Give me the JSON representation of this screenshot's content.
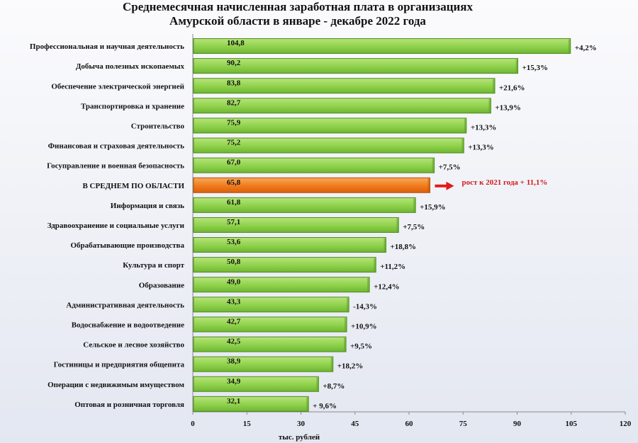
{
  "title_line1": "Среднемесячная начисленная заработная плата в организациях",
  "title_line2": "Амурской области в январе - декабре 2022 года",
  "chart_data": {
    "type": "bar",
    "orientation": "horizontal",
    "xlabel": "тыс. рублей",
    "xlim": [
      0,
      120
    ],
    "xticks": [
      0,
      15,
      30,
      45,
      60,
      75,
      90,
      105,
      120
    ],
    "categories": [
      "Профессиональная и научная деятельность",
      "Добыча полезных ископаемых",
      "Обеспечение электрической энергией",
      "Транспортировка и хранение",
      "Строительство",
      "Финансовая и страховая деятельность",
      "Госуправление и военная безопасность",
      "В СРЕДНЕМ ПО ОБЛАСТИ",
      "Информация и связь",
      "Здравоохранение и социальные услуги",
      "Обрабатывающие производства",
      "Культура и спорт",
      "Образование",
      "Административная деятельность",
      "Водоснабжение и водоотведение",
      "Сельское и лесное хозяйство",
      "Гостиницы и предприятия общепита",
      "Операции с недвижимым имуществом",
      "Оптовая и розничная торговля"
    ],
    "values": [
      104.8,
      90.2,
      83.8,
      82.7,
      75.9,
      75.2,
      67.0,
      65.8,
      61.8,
      57.1,
      53.6,
      50.8,
      49.0,
      43.3,
      42.7,
      42.5,
      38.9,
      34.9,
      32.1
    ],
    "value_labels": [
      "104,8",
      "90,2",
      "83,8",
      "82,7",
      "75,9",
      "75,2",
      "67,0",
      "65,8",
      "61,8",
      "57,1",
      "53,6",
      "50,8",
      "49,0",
      "43,3",
      "42,7",
      "42,5",
      "38,9",
      "34,9",
      "32,1"
    ],
    "change_labels": [
      "+4,2%",
      "+15,3%",
      "+21,6%",
      "+13,9%",
      "+13,3%",
      "+13,3%",
      "+7,5%",
      "",
      "+15,9%",
      "+7,5%",
      "+18,8%",
      "+11,2%",
      "+12,4%",
      "-14,3%",
      "+10,9%",
      "+9,5%",
      "+18,2%",
      "+8,7%",
      "+ 9,6%"
    ],
    "highlight_index": 7,
    "annotation": "рост к 2021 года + 11,1%",
    "colors": {
      "bar": "#8ed14b",
      "bar_top": "#b7e47a",
      "bar_edge": "#4c8a1e",
      "highlight": "#f07a1c",
      "highlight_top": "#f9a95a",
      "highlight_edge": "#b34d07",
      "arrow": "#e01b1b"
    },
    "grid": false
  }
}
